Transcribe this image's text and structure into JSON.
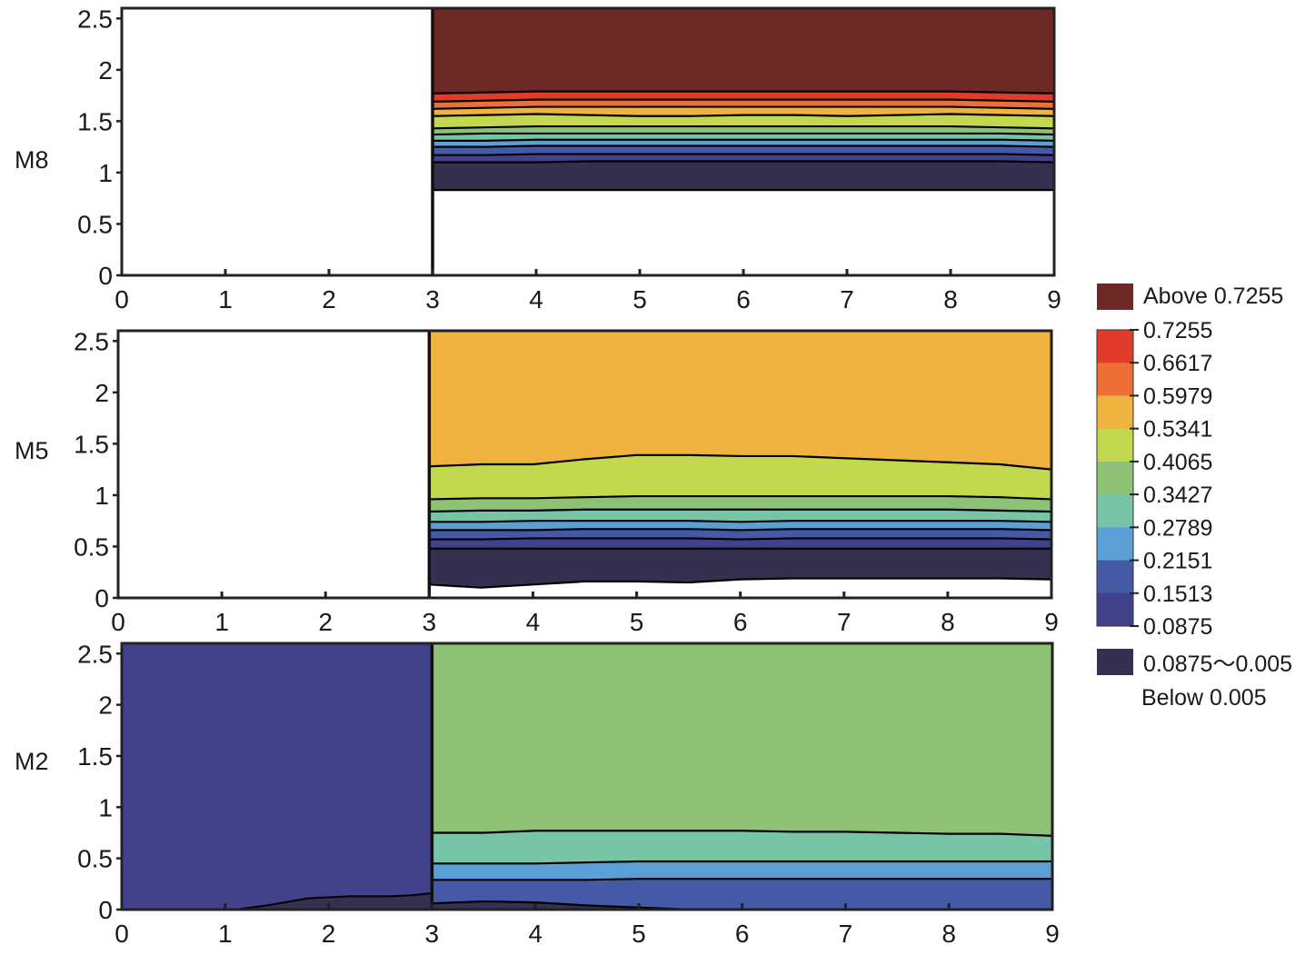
{
  "chart_data": {
    "type": "contour",
    "x_ticks": [
      "0",
      "1",
      "2",
      "3",
      "4",
      "5",
      "6",
      "7",
      "8",
      "9"
    ],
    "y_ticks": [
      "0",
      "0.5",
      "1",
      "1.5",
      "2",
      "2.5"
    ],
    "xlim": [
      0,
      9
    ],
    "ylim": [
      0,
      2.6
    ],
    "palette": {
      "above": "#6e2825",
      "bands": [
        "#41418c",
        "#455aa6",
        "#5aa0d6",
        "#78c4a7",
        "#8dc274",
        "#c4d84f",
        "#f0b23e",
        "#ed6e37",
        "#e03b2b"
      ],
      "below_band": "#35304f",
      "below": "#ffffff"
    },
    "legend": {
      "above_label": "Above 0.7255",
      "levels": [
        "0.7255",
        "0.6617",
        "0.5979",
        "0.5341",
        "0.4065",
        "0.3427",
        "0.2789",
        "0.2151",
        "0.1513",
        "0.0875"
      ],
      "range_label": "0.0875～0.005",
      "below_label": "Below 0.005"
    },
    "panels": [
      {
        "label": "M8",
        "wall_x": 3,
        "wall_extends_full_height": true,
        "left_fill": "#ffffff",
        "right_bands": [
          {
            "color": "#ffffff",
            "top": [
              0.83,
              0.83,
              0.83,
              0.83,
              0.83,
              0.83,
              0.83,
              0.83,
              0.83,
              0.83,
              0.83,
              0.83,
              0.83
            ]
          },
          {
            "color": "#35304f",
            "top": [
              1.1,
              1.1,
              1.1,
              1.11,
              1.11,
              1.11,
              1.11,
              1.11,
              1.11,
              1.11,
              1.11,
              1.11,
              1.1
            ]
          },
          {
            "color": "#41418c",
            "top": [
              1.17,
              1.17,
              1.18,
              1.18,
              1.18,
              1.18,
              1.18,
              1.18,
              1.18,
              1.18,
              1.18,
              1.18,
              1.17
            ]
          },
          {
            "color": "#455aa6",
            "top": [
              1.25,
              1.25,
              1.26,
              1.26,
              1.26,
              1.26,
              1.26,
              1.26,
              1.26,
              1.26,
              1.26,
              1.26,
              1.25
            ]
          },
          {
            "color": "#5aa0d6",
            "top": [
              1.31,
              1.31,
              1.32,
              1.32,
              1.32,
              1.32,
              1.32,
              1.32,
              1.32,
              1.32,
              1.32,
              1.32,
              1.31
            ]
          },
          {
            "color": "#78c4a7",
            "top": [
              1.37,
              1.38,
              1.38,
              1.38,
              1.38,
              1.38,
              1.38,
              1.38,
              1.38,
              1.38,
              1.38,
              1.38,
              1.37
            ]
          },
          {
            "color": "#8dc274",
            "top": [
              1.43,
              1.44,
              1.45,
              1.45,
              1.45,
              1.45,
              1.45,
              1.45,
              1.45,
              1.45,
              1.45,
              1.44,
              1.43
            ]
          },
          {
            "color": "#c4d84f",
            "top": [
              1.55,
              1.56,
              1.57,
              1.56,
              1.55,
              1.55,
              1.56,
              1.56,
              1.55,
              1.56,
              1.57,
              1.56,
              1.55
            ]
          },
          {
            "color": "#f0b23e",
            "top": [
              1.62,
              1.63,
              1.64,
              1.64,
              1.64,
              1.64,
              1.64,
              1.64,
              1.64,
              1.64,
              1.64,
              1.63,
              1.62
            ]
          },
          {
            "color": "#ed6e37",
            "top": [
              1.69,
              1.7,
              1.71,
              1.71,
              1.71,
              1.71,
              1.71,
              1.71,
              1.71,
              1.71,
              1.71,
              1.7,
              1.69
            ]
          },
          {
            "color": "#e03b2b",
            "top": [
              1.77,
              1.78,
              1.79,
              1.79,
              1.79,
              1.79,
              1.79,
              1.79,
              1.79,
              1.79,
              1.79,
              1.78,
              1.77
            ]
          },
          {
            "color": "#6e2825",
            "top": [
              2.6,
              2.6,
              2.6,
              2.6,
              2.6,
              2.6,
              2.6,
              2.6,
              2.6,
              2.6,
              2.6,
              2.6,
              2.6
            ]
          }
        ]
      },
      {
        "label": "M5",
        "wall_x": 3,
        "wall_extends_full_height": true,
        "left_fill": "#ffffff",
        "right_bands": [
          {
            "color": "#ffffff",
            "top": [
              0.13,
              0.1,
              0.13,
              0.16,
              0.16,
              0.15,
              0.18,
              0.19,
              0.19,
              0.19,
              0.19,
              0.19,
              0.18
            ]
          },
          {
            "color": "#35304f",
            "top": [
              0.48,
              0.48,
              0.48,
              0.48,
              0.48,
              0.48,
              0.48,
              0.48,
              0.48,
              0.48,
              0.48,
              0.48,
              0.48
            ]
          },
          {
            "color": "#41418c",
            "top": [
              0.57,
              0.57,
              0.58,
              0.58,
              0.58,
              0.58,
              0.57,
              0.58,
              0.58,
              0.58,
              0.58,
              0.58,
              0.57
            ]
          },
          {
            "color": "#455aa6",
            "top": [
              0.66,
              0.66,
              0.66,
              0.67,
              0.67,
              0.67,
              0.66,
              0.67,
              0.67,
              0.67,
              0.67,
              0.67,
              0.66
            ]
          },
          {
            "color": "#5aa0d6",
            "top": [
              0.74,
              0.74,
              0.75,
              0.75,
              0.75,
              0.75,
              0.74,
              0.75,
              0.75,
              0.75,
              0.75,
              0.75,
              0.74
            ]
          },
          {
            "color": "#78c4a7",
            "top": [
              0.84,
              0.85,
              0.85,
              0.86,
              0.86,
              0.86,
              0.86,
              0.86,
              0.86,
              0.86,
              0.86,
              0.85,
              0.84
            ]
          },
          {
            "color": "#8dc274",
            "top": [
              0.96,
              0.97,
              0.97,
              0.98,
              0.99,
              0.99,
              0.99,
              0.99,
              0.99,
              0.99,
              0.99,
              0.98,
              0.96
            ]
          },
          {
            "color": "#c4d84f",
            "top": [
              1.28,
              1.3,
              1.3,
              1.35,
              1.39,
              1.39,
              1.38,
              1.38,
              1.36,
              1.34,
              1.32,
              1.3,
              1.25
            ]
          },
          {
            "color": "#f0b23e",
            "top": [
              2.6,
              2.6,
              2.6,
              2.6,
              2.6,
              2.6,
              2.6,
              2.6,
              2.6,
              2.6,
              2.6,
              2.6,
              2.6
            ]
          }
        ]
      },
      {
        "label": "M2",
        "wall_x": 3,
        "wall_extends_full_height": true,
        "left_fill": "#41418c",
        "left_bottom_band": {
          "color": "#35304f",
          "top": [
            0.0,
            0.0,
            0.0,
            0.04,
            0.11,
            0.13,
            0.13,
            0.14,
            0.16
          ],
          "x": [
            0,
            0.5,
            1.1,
            1.4,
            1.8,
            2.2,
            2.6,
            2.8,
            3.0
          ]
        },
        "right_bands": [
          {
            "color": "#35304f",
            "top": [
              0.06,
              0.08,
              0.07,
              0.04,
              0.02,
              0.0,
              0.0,
              0.0,
              0.0,
              0.0,
              0.0,
              0.0,
              0.0
            ]
          },
          {
            "color": "#455aa6",
            "top": [
              0.29,
              0.29,
              0.29,
              0.29,
              0.3,
              0.3,
              0.3,
              0.3,
              0.3,
              0.3,
              0.3,
              0.3,
              0.3
            ]
          },
          {
            "color": "#5aa0d6",
            "top": [
              0.45,
              0.45,
              0.45,
              0.46,
              0.47,
              0.47,
              0.47,
              0.47,
              0.47,
              0.47,
              0.47,
              0.47,
              0.47
            ]
          },
          {
            "color": "#78c4a7",
            "top": [
              0.75,
              0.75,
              0.77,
              0.77,
              0.77,
              0.77,
              0.77,
              0.76,
              0.76,
              0.75,
              0.74,
              0.74,
              0.72
            ]
          },
          {
            "color": "#8dc274",
            "top": [
              2.6,
              2.6,
              2.6,
              2.6,
              2.6,
              2.6,
              2.6,
              2.6,
              2.6,
              2.6,
              2.6,
              2.6,
              2.6
            ]
          }
        ]
      }
    ]
  }
}
